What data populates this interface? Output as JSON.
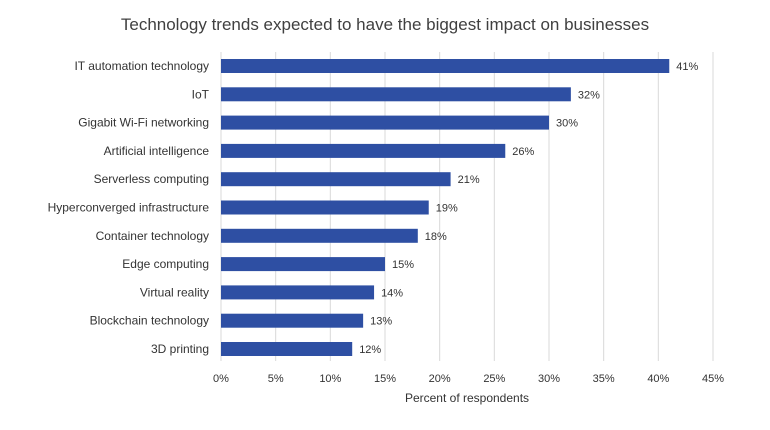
{
  "chart_data": {
    "type": "bar",
    "orientation": "horizontal",
    "title": "Technology trends expected to have the biggest impact on businesses",
    "xlabel": "Percent of respondents",
    "ylabel": "",
    "categories": [
      "IT automation technology",
      "IoT",
      "Gigabit Wi-Fi networking",
      "Artificial intelligence",
      "Serverless computing",
      "Hyperconverged infrastructure",
      "Container technology",
      "Edge computing",
      "Virtual reality",
      "Blockchain technology",
      "3D printing"
    ],
    "values": [
      41,
      32,
      30,
      26,
      21,
      19,
      18,
      15,
      14,
      13,
      12
    ],
    "value_labels": [
      "41%",
      "32%",
      "30%",
      "26%",
      "21%",
      "19%",
      "18%",
      "15%",
      "14%",
      "13%",
      "12%"
    ],
    "xlim": [
      0,
      45
    ],
    "xticks": [
      0,
      5,
      10,
      15,
      20,
      25,
      30,
      35,
      40,
      45
    ],
    "xtick_labels": [
      "0%",
      "5%",
      "10%",
      "15%",
      "20%",
      "25%",
      "30%",
      "35%",
      "40%",
      "45%"
    ],
    "grid": "vertical",
    "legend": "none",
    "colors": {
      "bar": "#2E4FA3",
      "grid": "#d9d9d9",
      "text": "#333333",
      "title": "#404040"
    }
  }
}
